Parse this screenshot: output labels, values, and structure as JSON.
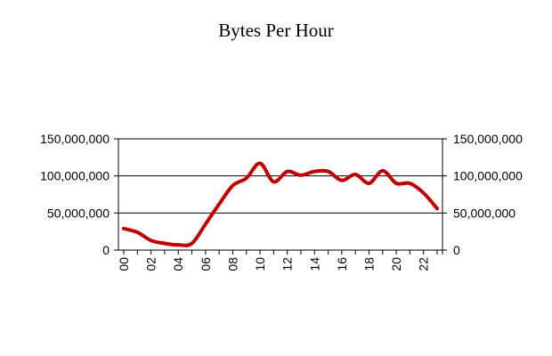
{
  "chart_data": {
    "type": "line",
    "title": "Bytes Per Hour",
    "xlabel": "",
    "ylabel": "",
    "x": [
      "00",
      "01",
      "02",
      "03",
      "04",
      "05",
      "06",
      "07",
      "08",
      "09",
      "10",
      "11",
      "12",
      "13",
      "14",
      "15",
      "16",
      "17",
      "18",
      "19",
      "20",
      "21",
      "22",
      "23"
    ],
    "x_tick_labels": [
      "00",
      "02",
      "04",
      "06",
      "08",
      "10",
      "12",
      "14",
      "16",
      "18",
      "20",
      "22"
    ],
    "y_tick_labels": [
      "0",
      "50,000,000",
      "100,000,000",
      "150,000,000"
    ],
    "y_ticks": [
      0,
      50000000,
      100000000,
      150000000
    ],
    "ylim": [
      0,
      150000000
    ],
    "grid": "horizontal",
    "legend": "none",
    "series": [
      {
        "name": "",
        "color": "#c00000",
        "values": [
          29000000,
          24000000,
          13000000,
          9000000,
          7000000,
          9000000,
          35000000,
          62000000,
          87000000,
          97000000,
          117000000,
          92000000,
          106000000,
          101000000,
          106000000,
          106000000,
          94000000,
          102000000,
          90000000,
          107000000,
          90000000,
          90000000,
          77000000,
          56000000
        ]
      }
    ]
  }
}
